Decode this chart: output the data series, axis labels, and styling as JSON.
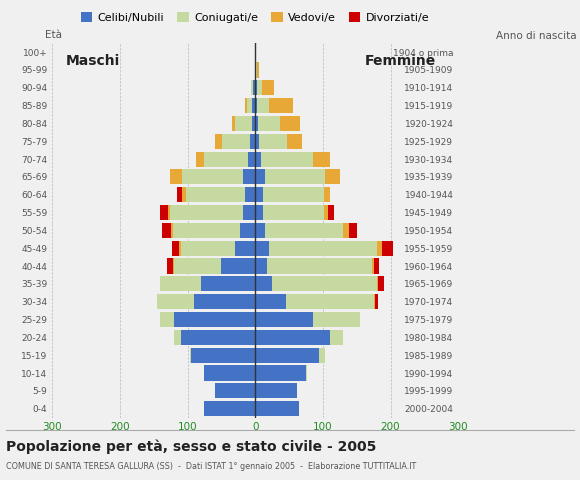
{
  "age_groups": [
    "100+",
    "95-99",
    "90-94",
    "85-89",
    "80-84",
    "75-79",
    "70-74",
    "65-69",
    "60-64",
    "55-59",
    "50-54",
    "45-49",
    "40-44",
    "35-39",
    "30-34",
    "25-29",
    "20-24",
    "15-19",
    "10-14",
    "5-9",
    "0-4"
  ],
  "birth_years": [
    "1904 o prima",
    "1905-1909",
    "1910-1914",
    "1915-1919",
    "1920-1924",
    "1925-1929",
    "1930-1934",
    "1935-1939",
    "1940-1944",
    "1945-1949",
    "1950-1954",
    "1955-1959",
    "1960-1964",
    "1965-1969",
    "1970-1974",
    "1975-1979",
    "1980-1984",
    "1985-1989",
    "1990-1994",
    "1995-1999",
    "2000-2004"
  ],
  "males_celibe": [
    0,
    0,
    3,
    4,
    5,
    7,
    10,
    18,
    15,
    18,
    22,
    30,
    50,
    80,
    90,
    120,
    110,
    95,
    75,
    60,
    75
  ],
  "males_coniugato": [
    0,
    0,
    3,
    8,
    25,
    42,
    65,
    90,
    88,
    108,
    100,
    80,
    70,
    60,
    55,
    20,
    10,
    2,
    0,
    0,
    0
  ],
  "males_vedovo": [
    0,
    0,
    0,
    3,
    5,
    10,
    12,
    18,
    5,
    3,
    3,
    3,
    2,
    0,
    0,
    0,
    0,
    0,
    0,
    0,
    0
  ],
  "males_divorziato": [
    0,
    0,
    0,
    0,
    0,
    0,
    0,
    0,
    8,
    12,
    12,
    10,
    8,
    0,
    0,
    0,
    0,
    0,
    0,
    0,
    0
  ],
  "females_nubile": [
    0,
    0,
    2,
    3,
    4,
    5,
    8,
    15,
    12,
    12,
    15,
    20,
    18,
    25,
    45,
    85,
    110,
    95,
    75,
    62,
    65
  ],
  "females_coniugata": [
    0,
    2,
    8,
    18,
    32,
    42,
    78,
    88,
    90,
    90,
    115,
    160,
    155,
    155,
    130,
    70,
    20,
    8,
    2,
    0,
    0
  ],
  "females_vedova": [
    0,
    3,
    18,
    35,
    30,
    22,
    25,
    22,
    8,
    6,
    8,
    8,
    2,
    2,
    2,
    0,
    0,
    0,
    0,
    0,
    0
  ],
  "females_divorziata": [
    0,
    0,
    0,
    0,
    0,
    0,
    0,
    0,
    0,
    8,
    12,
    15,
    8,
    8,
    5,
    0,
    0,
    0,
    0,
    0,
    0
  ],
  "colors": {
    "celibe": "#4472c4",
    "coniugato": "#c5d9a0",
    "vedovo": "#e8a838",
    "divorziato": "#cc0000"
  },
  "xlim": 300,
  "title": "Popolazione per età, sesso e stato civile - 2005",
  "subtitle": "COMUNE DI SANTA TERESA GALLURA (SS)  -  Dati ISTAT 1° gennaio 2005  -  Elaborazione TUTTITALIA.IT",
  "legend_labels": [
    "Celibi/Nubili",
    "Coniugati/e",
    "Vedovi/e",
    "Divorziati/e"
  ],
  "bg_color": "#f0f0f0"
}
